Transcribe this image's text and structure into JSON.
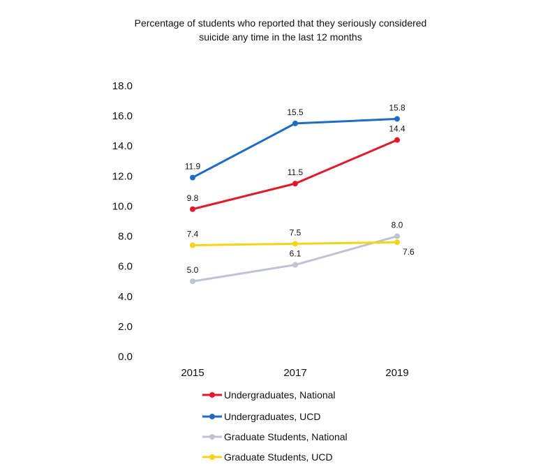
{
  "chart_data": {
    "type": "line",
    "title_lines": [
      "Percentage of students who reported that they seriously considered",
      "suicide any time in the last 12 months"
    ],
    "categories": [
      "2015",
      "2017",
      "2019"
    ],
    "ylim": [
      0,
      18
    ],
    "yticks": [
      "0.0",
      "2.0",
      "4.0",
      "6.0",
      "8.0",
      "10.0",
      "12.0",
      "14.0",
      "16.0",
      "18.0"
    ],
    "grid": false,
    "legend_position": "bottom",
    "series": [
      {
        "name": "Undergraduates, National",
        "color": "#e0192b",
        "values": [
          9.8,
          11.5,
          14.4
        ],
        "labels": [
          "9.8",
          "11.5",
          "14.4"
        ]
      },
      {
        "name": "Undergraduates, UCD",
        "color": "#1f6cc4",
        "values": [
          11.9,
          15.5,
          15.8
        ],
        "labels": [
          "11.9",
          "15.5",
          "15.8"
        ]
      },
      {
        "name": "Graduate Students, National",
        "color": "#bfc3d1",
        "values": [
          5.0,
          6.1,
          8.0
        ],
        "labels": [
          "5.0",
          "6.1",
          "8.0"
        ]
      },
      {
        "name": "Graduate Students, UCD",
        "color": "#f4d515",
        "values": [
          7.4,
          7.5,
          7.6
        ],
        "labels": [
          "7.4",
          "7.5",
          "7.6"
        ]
      }
    ]
  }
}
